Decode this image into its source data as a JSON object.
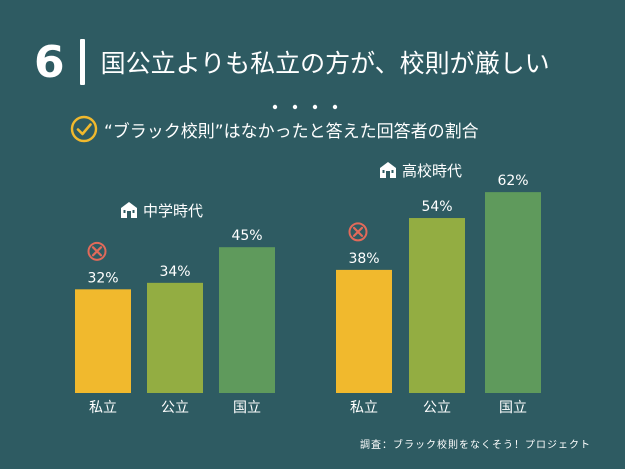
{
  "header": {
    "number": "6",
    "title": "国公立よりも私立の方が、校則が厳しい"
  },
  "subtitle": "“ブラック校則”はなかったと答えた回答者の割合",
  "source": "調査：ブラック校則をなくそう！プロジェクト",
  "chart_data": [
    {
      "type": "bar",
      "title": "中学時代",
      "categories": [
        "私立",
        "公立",
        "国立"
      ],
      "values": [
        32,
        34,
        45
      ],
      "value_labels": [
        "32%",
        "34%",
        "45%"
      ],
      "colors": [
        "#f1b92d",
        "#93ad42",
        "#5f9a5c"
      ],
      "marked": [
        "私立"
      ],
      "ylim": [
        0,
        70
      ],
      "grid": false
    },
    {
      "type": "bar",
      "title": "高校時代",
      "categories": [
        "私立",
        "公立",
        "国立"
      ],
      "values": [
        38,
        54,
        62
      ],
      "value_labels": [
        "38%",
        "54%",
        "62%"
      ],
      "colors": [
        "#f1b92d",
        "#93ad42",
        "#5f9a5c"
      ],
      "marked": [
        "私立"
      ],
      "ylim": [
        0,
        70
      ],
      "grid": false
    }
  ],
  "icons": {
    "group_icon": "school-building-icon",
    "check_icon": "check-circle-icon",
    "mark_icon": "x-circle-icon"
  },
  "colors": {
    "background": "#2e5b62",
    "mark": "#e26a5a",
    "check": "#f1b92d"
  }
}
